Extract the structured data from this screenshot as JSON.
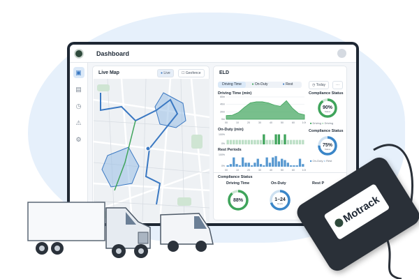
{
  "header": {
    "title": "Dashboard"
  },
  "sidebar": {
    "items": [
      {
        "icon": "car-icon"
      },
      {
        "icon": "truck-icon"
      },
      {
        "icon": "clock-icon"
      },
      {
        "icon": "alert-icon"
      },
      {
        "icon": "gear-icon"
      }
    ]
  },
  "map": {
    "title": "Live Map",
    "live_label": "Live",
    "geofence_label": "Geofence"
  },
  "eld": {
    "title": "ELD",
    "tabs": [
      "Driving Time",
      "On-Duty",
      "Rest"
    ],
    "today_label": "Today",
    "more_label": "···",
    "driving_chart": {
      "title": "Driving Time (min)",
      "type": "area",
      "yticks": [
        "60m",
        "40m",
        "20m",
        "0m"
      ],
      "xticks": [
        "00",
        "10",
        "20",
        "30",
        "40",
        "50",
        "60",
        "1:00"
      ],
      "ylim": [
        0,
        60
      ],
      "values": [
        10,
        11,
        18,
        32,
        44,
        47,
        47,
        44,
        38,
        35,
        50,
        30,
        16,
        12
      ],
      "color": "#3fa45b"
    },
    "onduty_chart": {
      "title": "On-Duty (min)",
      "type": "bar",
      "yticks": [
        "100%",
        "0%"
      ],
      "values": [
        40,
        40,
        40,
        40,
        40,
        40,
        40,
        40,
        40,
        40,
        40,
        40,
        90,
        40,
        40,
        40,
        90,
        90,
        40,
        90,
        40,
        40,
        40,
        40,
        40,
        40
      ],
      "highlight_threshold": 60,
      "color": "#3fa45b"
    },
    "rest_chart": {
      "title": "Rest Periods",
      "type": "bar",
      "yticks": [
        "100%",
        "0%"
      ],
      "xticks": [
        "00",
        "10",
        "20",
        "30",
        "40",
        "50",
        "60",
        "1:00"
      ],
      "values": [
        10,
        20,
        70,
        20,
        10,
        70,
        30,
        30,
        10,
        30,
        60,
        20,
        10,
        70,
        30,
        70,
        80,
        40,
        60,
        50,
        30,
        10,
        10,
        10,
        60,
        20
      ],
      "color": "#3a86c8"
    },
    "compliance": [
      {
        "title": "Compliance Status",
        "value": "90%",
        "sub": "Status",
        "percent": 90,
        "color": "#3fa45b",
        "legend": [
          "Driving",
          "Driving"
        ]
      },
      {
        "title": "Compliance Status",
        "value": "75%",
        "sub": "Status",
        "percent": 75,
        "color": "#3a86c8",
        "legend": [
          "On-Duty",
          "Rest"
        ]
      }
    ],
    "bottom": {
      "title": "Compliance Status",
      "items": [
        {
          "label": "Driving Time",
          "value": "88%",
          "sub": "",
          "percent": 88,
          "color": "#3fa45b"
        },
        {
          "label": "On-Duty",
          "value": "1–24",
          "sub": "Hours",
          "percent": 70,
          "color": "#3a86c8"
        },
        {
          "label": "Rest P",
          "value": "",
          "sub": ""
        }
      ]
    }
  },
  "device": {
    "brand": "Motrack"
  }
}
